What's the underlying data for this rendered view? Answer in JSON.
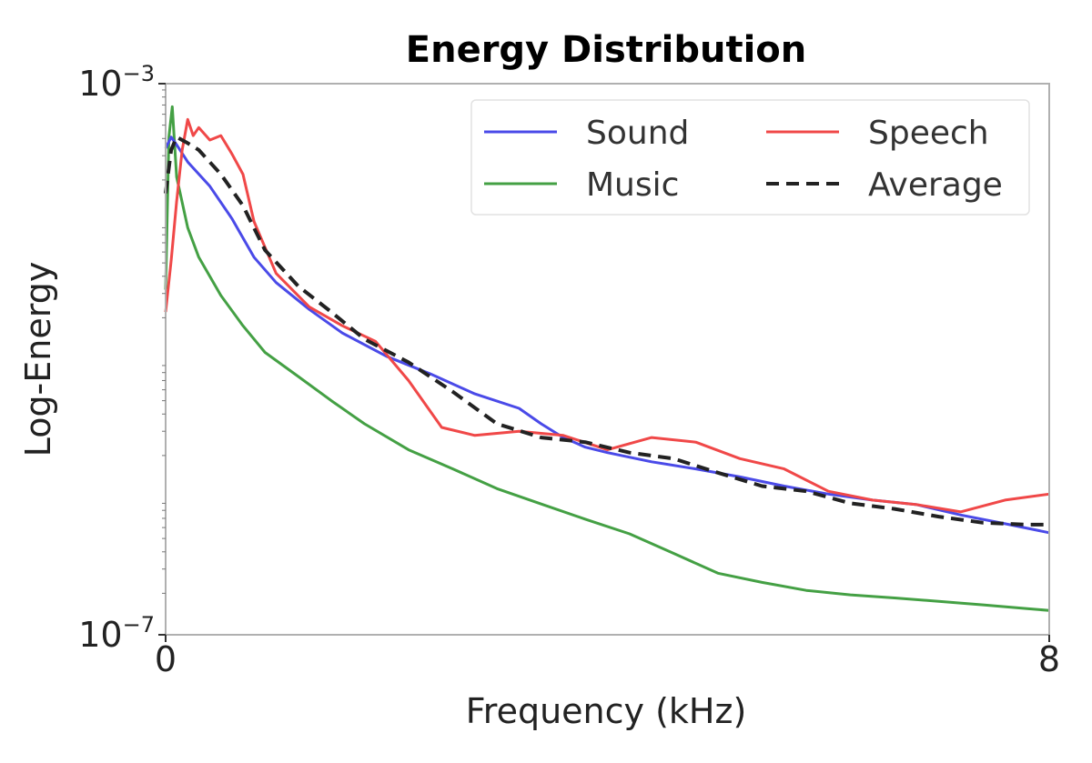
{
  "chart_data": {
    "type": "line",
    "title": "Energy Distribution",
    "xlabel": "Frequency (kHz)",
    "ylabel": "Log-Energy",
    "xlim": [
      0,
      8
    ],
    "ylim": [
      1e-07,
      0.001
    ],
    "yscale": "log",
    "x_ticks": [
      {
        "value": 0,
        "label": "0"
      },
      {
        "value": 8,
        "label": "8"
      }
    ],
    "y_ticks": [
      {
        "value": 1e-07,
        "base": "10",
        "exp": "−7"
      },
      {
        "value": 0.001,
        "base": "10",
        "exp": "−3"
      }
    ],
    "grid": false,
    "legend": {
      "position": "top-right",
      "columns": 2
    },
    "series": [
      {
        "name": "Sound",
        "color": "#4a4ae8",
        "dash": "solid",
        "x": [
          0,
          0.05,
          0.1,
          0.2,
          0.4,
          0.6,
          0.8,
          1.0,
          1.3,
          1.6,
          2.0,
          2.4,
          2.8,
          3.2,
          3.4,
          3.6,
          3.8,
          4.0,
          4.4,
          4.8,
          5.2,
          5.6,
          6.0,
          6.4,
          6.8,
          7.2,
          7.6,
          8.0
        ],
        "y": [
          0.00034,
          0.00041,
          0.00036,
          0.00027,
          0.00018,
          0.000105,
          5.5e-05,
          3.6e-05,
          2.3e-05,
          1.55e-05,
          1.05e-05,
          7.8e-06,
          5.6e-06,
          4.4e-06,
          3.4e-06,
          2.7e-06,
          2.3e-06,
          2.1e-06,
          1.8e-06,
          1.6e-06,
          1.4e-06,
          1.2e-06,
          1.05e-06,
          9.5e-07,
          8.8e-07,
          7.4e-07,
          6.4e-07,
          5.5e-07
        ]
      },
      {
        "name": "Speech",
        "color": "#f04848",
        "dash": "solid",
        "x": [
          0,
          0.05,
          0.1,
          0.15,
          0.2,
          0.25,
          0.3,
          0.4,
          0.5,
          0.6,
          0.7,
          0.8,
          1.0,
          1.3,
          1.6,
          1.9,
          2.2,
          2.5,
          2.8,
          3.2,
          3.6,
          4.0,
          4.4,
          4.8,
          5.2,
          5.6,
          6.0,
          6.4,
          6.8,
          7.2,
          7.6,
          8.0
        ],
        "y": [
          2.2e-05,
          5.2e-05,
          0.00014,
          0.00033,
          0.00055,
          0.00042,
          0.00048,
          0.00039,
          0.00042,
          0.00031,
          0.00022,
          0.0001,
          4.2e-05,
          2.4e-05,
          1.75e-05,
          1.35e-05,
          7e-06,
          3.2e-06,
          2.8e-06,
          3e-06,
          2.8e-06,
          2.2e-06,
          2.7e-06,
          2.5e-06,
          1.9e-06,
          1.6e-06,
          1.1e-06,
          9.5e-07,
          8.8e-07,
          7.8e-07,
          9.5e-07,
          1.05e-06
        ]
      },
      {
        "name": "Music",
        "color": "#44a044",
        "dash": "solid",
        "x": [
          0,
          0.03,
          0.06,
          0.1,
          0.2,
          0.3,
          0.5,
          0.7,
          0.9,
          1.2,
          1.5,
          1.8,
          2.2,
          2.6,
          3.0,
          3.4,
          3.8,
          4.2,
          4.6,
          5.0,
          5.4,
          5.8,
          6.2,
          6.6,
          7.0,
          7.4,
          7.8,
          8.0
        ],
        "y": [
          3.2e-05,
          0.00041,
          0.00068,
          0.00021,
          9e-05,
          5.5e-05,
          2.9e-05,
          1.75e-05,
          1.12e-05,
          7.5e-06,
          5e-06,
          3.4e-06,
          2.2e-06,
          1.6e-06,
          1.15e-06,
          8.9e-07,
          6.9e-07,
          5.4e-07,
          3.9e-07,
          2.8e-07,
          2.4e-07,
          2.1e-07,
          1.95e-07,
          1.85e-07,
          1.75e-07,
          1.65e-07,
          1.55e-07,
          1.5e-07
        ]
      },
      {
        "name": "Average",
        "color": "#222222",
        "dash": "dashed",
        "x": [
          0,
          0.05,
          0.1,
          0.2,
          0.3,
          0.5,
          0.7,
          0.9,
          1.2,
          1.5,
          1.8,
          2.2,
          2.6,
          3.0,
          3.4,
          3.8,
          4.2,
          4.6,
          5.0,
          5.4,
          5.8,
          6.2,
          6.6,
          7.0,
          7.4,
          7.8,
          8.0
        ],
        "y": [
          0.00016,
          0.00033,
          0.00041,
          0.00037,
          0.00033,
          0.00022,
          0.00013,
          6.2e-05,
          3.4e-05,
          2.2e-05,
          1.4e-05,
          9.5e-06,
          5.8e-06,
          3.4e-06,
          2.7e-06,
          2.5e-06,
          2.1e-06,
          1.9e-06,
          1.5e-06,
          1.2e-06,
          1.1e-06,
          9e-07,
          8.2e-07,
          7.2e-07,
          6.5e-07,
          6.3e-07,
          6.3e-07
        ]
      }
    ]
  }
}
